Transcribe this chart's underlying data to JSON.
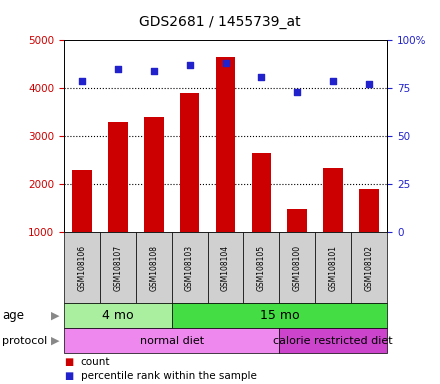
{
  "title": "GDS2681 / 1455739_at",
  "samples": [
    "GSM108106",
    "GSM108107",
    "GSM108108",
    "GSM108103",
    "GSM108104",
    "GSM108105",
    "GSM108100",
    "GSM108101",
    "GSM108102"
  ],
  "counts": [
    2300,
    3300,
    3400,
    3900,
    4650,
    2650,
    1480,
    2330,
    1900
  ],
  "percentiles": [
    79,
    85,
    84,
    87,
    88,
    81,
    73,
    79,
    77
  ],
  "ylim_left": [
    1000,
    5000
  ],
  "ylim_right": [
    0,
    100
  ],
  "yticks_left": [
    1000,
    2000,
    3000,
    4000,
    5000
  ],
  "yticks_right": [
    0,
    25,
    50,
    75,
    100
  ],
  "bar_color": "#cc0000",
  "dot_color": "#2222cc",
  "age_groups": [
    {
      "label": "4 mo",
      "start": 0,
      "end": 3,
      "color": "#aaeea0"
    },
    {
      "label": "15 mo",
      "start": 3,
      "end": 9,
      "color": "#44dd44"
    }
  ],
  "protocol_groups": [
    {
      "label": "normal diet",
      "start": 0,
      "end": 6,
      "color": "#ee88ee"
    },
    {
      "label": "calorie restricted diet",
      "start": 6,
      "end": 9,
      "color": "#cc44cc"
    }
  ],
  "tick_label_color_left": "#cc0000",
  "tick_label_color_right": "#2222cc",
  "gridline_ticks": [
    2000,
    3000,
    4000
  ],
  "sample_box_color": "#d0d0d0"
}
